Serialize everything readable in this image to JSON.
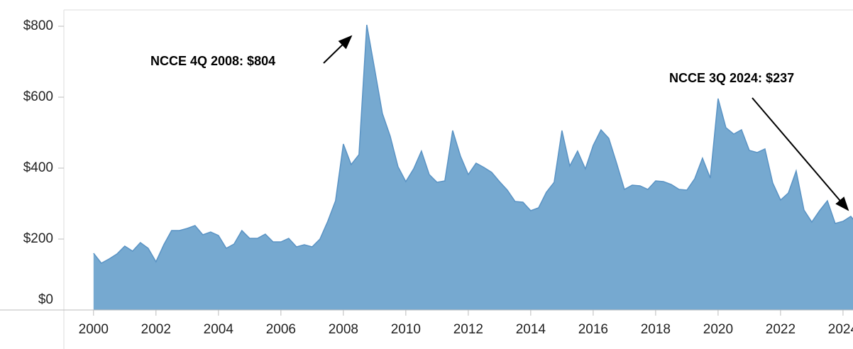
{
  "chart_data": {
    "type": "area",
    "annotations": [
      "NCCE 4Q 2008:  $804",
      "NCCE 3Q 2024: $237"
    ],
    "x": [
      2000,
      2000.25,
      2000.5,
      2000.75,
      2001,
      2001.25,
      2001.5,
      2001.75,
      2002,
      2002.25,
      2002.5,
      2002.75,
      2003,
      2003.25,
      2003.5,
      2003.75,
      2004,
      2004.25,
      2004.5,
      2004.75,
      2005,
      2005.25,
      2005.5,
      2005.75,
      2006,
      2006.25,
      2006.5,
      2006.75,
      2007,
      2007.25,
      2007.5,
      2007.75,
      2008,
      2008.25,
      2008.5,
      2008.75,
      2009,
      2009.25,
      2009.5,
      2009.75,
      2010,
      2010.25,
      2010.5,
      2010.75,
      2011,
      2011.25,
      2011.5,
      2011.75,
      2012,
      2012.25,
      2012.5,
      2012.75,
      2013,
      2013.25,
      2013.5,
      2013.75,
      2014,
      2014.25,
      2014.5,
      2014.75,
      2015,
      2015.25,
      2015.5,
      2015.75,
      2016,
      2016.25,
      2016.5,
      2016.75,
      2017,
      2017.25,
      2017.5,
      2017.75,
      2018,
      2018.25,
      2018.5,
      2018.75,
      2019,
      2019.25,
      2019.5,
      2019.75,
      2020,
      2020.25,
      2020.5,
      2020.75,
      2021,
      2021.25,
      2021.5,
      2021.75,
      2022,
      2022.25,
      2022.5,
      2022.75,
      2023,
      2023.25,
      2023.5,
      2023.75,
      2024,
      2024.25,
      2024.5
    ],
    "values": [
      160,
      132,
      144,
      158,
      180,
      166,
      190,
      174,
      136,
      184,
      224,
      224,
      230,
      238,
      212,
      220,
      210,
      174,
      186,
      224,
      202,
      202,
      214,
      192,
      192,
      202,
      178,
      184,
      178,
      200,
      250,
      308,
      468,
      410,
      438,
      804,
      680,
      554,
      490,
      404,
      362,
      398,
      448,
      382,
      360,
      364,
      506,
      434,
      382,
      414,
      402,
      388,
      362,
      338,
      306,
      304,
      280,
      288,
      332,
      360,
      506,
      406,
      448,
      398,
      464,
      508,
      484,
      414,
      340,
      352,
      350,
      340,
      364,
      362,
      354,
      340,
      338,
      370,
      428,
      372,
      596,
      514,
      496,
      508,
      450,
      444,
      454,
      358,
      310,
      330,
      392,
      282,
      248,
      280,
      308,
      244,
      250,
      264,
      237
    ],
    "color": "#76a9d0",
    "line_color": "#5a93c4",
    "xlim": [
      1999.05,
      2024.32
    ],
    "xticks": [
      2000,
      2002,
      2004,
      2006,
      2008,
      2010,
      2012,
      2014,
      2016,
      2018,
      2020,
      2022,
      2024
    ],
    "ylim": [
      0,
      846
    ],
    "yticks": [
      {
        "value": 0,
        "label": "$0"
      },
      {
        "value": 200,
        "label": "$200"
      },
      {
        "value": 400,
        "label": "$400"
      },
      {
        "value": 600,
        "label": "$600"
      },
      {
        "value": 800,
        "label": "$800"
      }
    ]
  }
}
